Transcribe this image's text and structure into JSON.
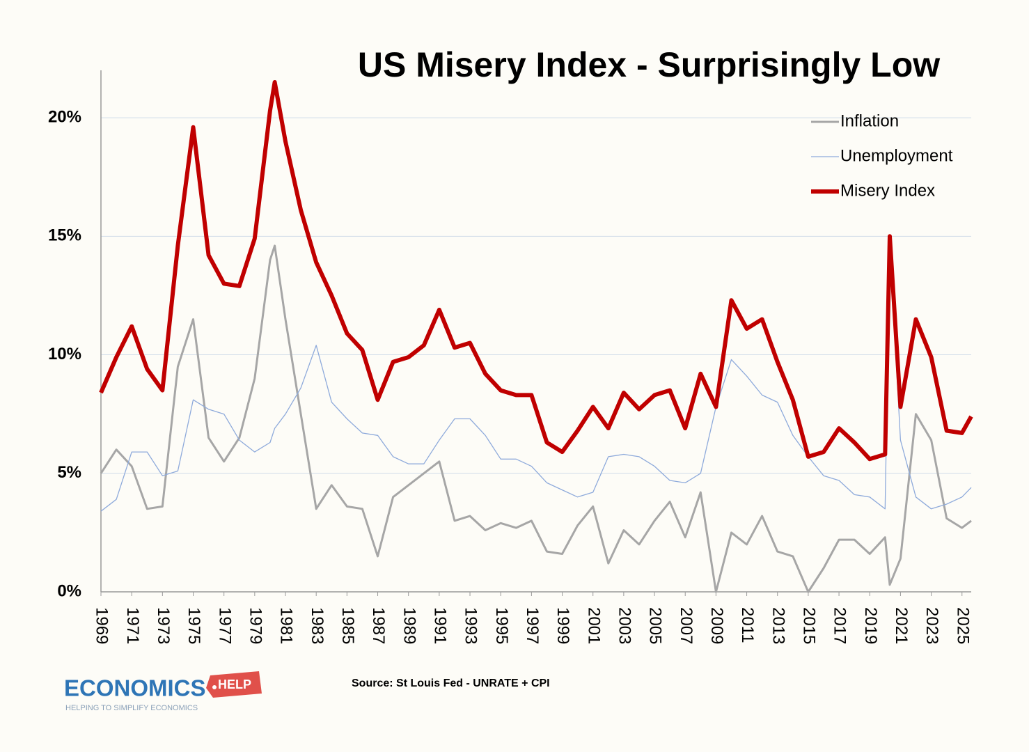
{
  "chart_data": {
    "type": "line",
    "title": "US Misery Index - Surprisingly Low",
    "source": "Source: St Louis Fed - UNRATE + CPI",
    "x": [
      1969,
      1970,
      1971,
      1972,
      1973,
      1974,
      1975,
      1976,
      1977,
      1978,
      1979,
      1980,
      1980.3,
      1981,
      1982,
      1983,
      1984,
      1985,
      1986,
      1987,
      1988,
      1989,
      1990,
      1991,
      1992,
      1993,
      1994,
      1995,
      1996,
      1997,
      1998,
      1999,
      2000,
      2001,
      2002,
      2003,
      2004,
      2005,
      2006,
      2007,
      2008,
      2009,
      2010,
      2011,
      2012,
      2013,
      2014,
      2015,
      2016,
      2017,
      2018,
      2019,
      2020,
      2020.3,
      2021,
      2022,
      2023,
      2024,
      2025,
      2025.6
    ],
    "series": [
      {
        "name": "Inflation",
        "color": "#a6a6a6",
        "width": 3,
        "values": [
          5.0,
          6.0,
          5.3,
          3.5,
          3.6,
          9.5,
          11.5,
          6.5,
          5.5,
          6.5,
          9.0,
          14.0,
          14.6,
          11.5,
          7.5,
          3.5,
          4.5,
          3.6,
          3.5,
          1.5,
          4.0,
          4.5,
          5.0,
          5.5,
          3.0,
          3.2,
          2.6,
          2.9,
          2.7,
          3.0,
          1.7,
          1.6,
          2.8,
          3.6,
          1.2,
          2.6,
          2.0,
          3.0,
          3.8,
          2.3,
          4.2,
          0.0,
          2.5,
          2.0,
          3.2,
          1.7,
          1.5,
          0.0,
          1.0,
          2.2,
          2.2,
          1.6,
          2.3,
          0.3,
          1.4,
          7.5,
          6.4,
          3.1,
          2.7,
          3.0
        ]
      },
      {
        "name": "Unemployment",
        "color": "#8eaadb",
        "width": 1.3,
        "values": [
          3.4,
          3.9,
          5.9,
          5.9,
          4.9,
          5.1,
          8.1,
          7.7,
          7.5,
          6.4,
          5.9,
          6.3,
          6.9,
          7.5,
          8.6,
          10.4,
          8.0,
          7.3,
          6.7,
          6.6,
          5.7,
          5.4,
          5.4,
          6.4,
          7.3,
          7.3,
          6.6,
          5.6,
          5.6,
          5.3,
          4.6,
          4.3,
          4.0,
          4.2,
          5.7,
          5.8,
          5.7,
          5.3,
          4.7,
          4.6,
          5.0,
          7.8,
          9.8,
          9.1,
          8.3,
          8.0,
          6.6,
          5.7,
          4.9,
          4.7,
          4.1,
          4.0,
          3.5,
          14.7,
          6.4,
          4.0,
          3.5,
          3.7,
          4.0,
          4.4
        ]
      },
      {
        "name": "Misery Index",
        "color": "#c00000",
        "width": 6,
        "values": [
          8.4,
          9.9,
          11.2,
          9.4,
          8.5,
          14.6,
          19.6,
          14.2,
          13.0,
          12.9,
          14.9,
          20.3,
          21.5,
          19.0,
          16.1,
          13.9,
          12.5,
          10.9,
          10.2,
          8.1,
          9.7,
          9.9,
          10.4,
          11.9,
          10.3,
          10.5,
          9.2,
          8.5,
          8.3,
          8.3,
          6.3,
          5.9,
          6.8,
          7.8,
          6.9,
          8.4,
          7.7,
          8.3,
          8.5,
          6.9,
          9.2,
          7.8,
          12.3,
          11.1,
          11.5,
          9.7,
          8.1,
          5.7,
          5.9,
          6.9,
          6.3,
          5.6,
          5.8,
          15.0,
          7.8,
          11.5,
          9.9,
          6.8,
          6.7,
          7.4
        ]
      }
    ],
    "xlim": [
      1969,
      2025.6
    ],
    "xticks": [
      1969,
      1971,
      1973,
      1975,
      1977,
      1979,
      1981,
      1983,
      1985,
      1987,
      1989,
      1991,
      1993,
      1995,
      1997,
      1999,
      2001,
      2003,
      2005,
      2007,
      2009,
      2011,
      2013,
      2015,
      2017,
      2019,
      2021,
      2023,
      2025
    ],
    "ylim": [
      0,
      22
    ],
    "yticks": [
      {
        "value": 0,
        "label": "0%"
      },
      {
        "value": 5,
        "label": "5%"
      },
      {
        "value": 10,
        "label": "10%"
      },
      {
        "value": 15,
        "label": "15%"
      },
      {
        "value": 20,
        "label": "20%"
      }
    ],
    "grid": true,
    "legend": "upper right"
  },
  "logo": {
    "name": "ECONOMICS",
    "tag": "HELP",
    "tagline": "HELPING TO SIMPLIFY ECONOMICS"
  }
}
